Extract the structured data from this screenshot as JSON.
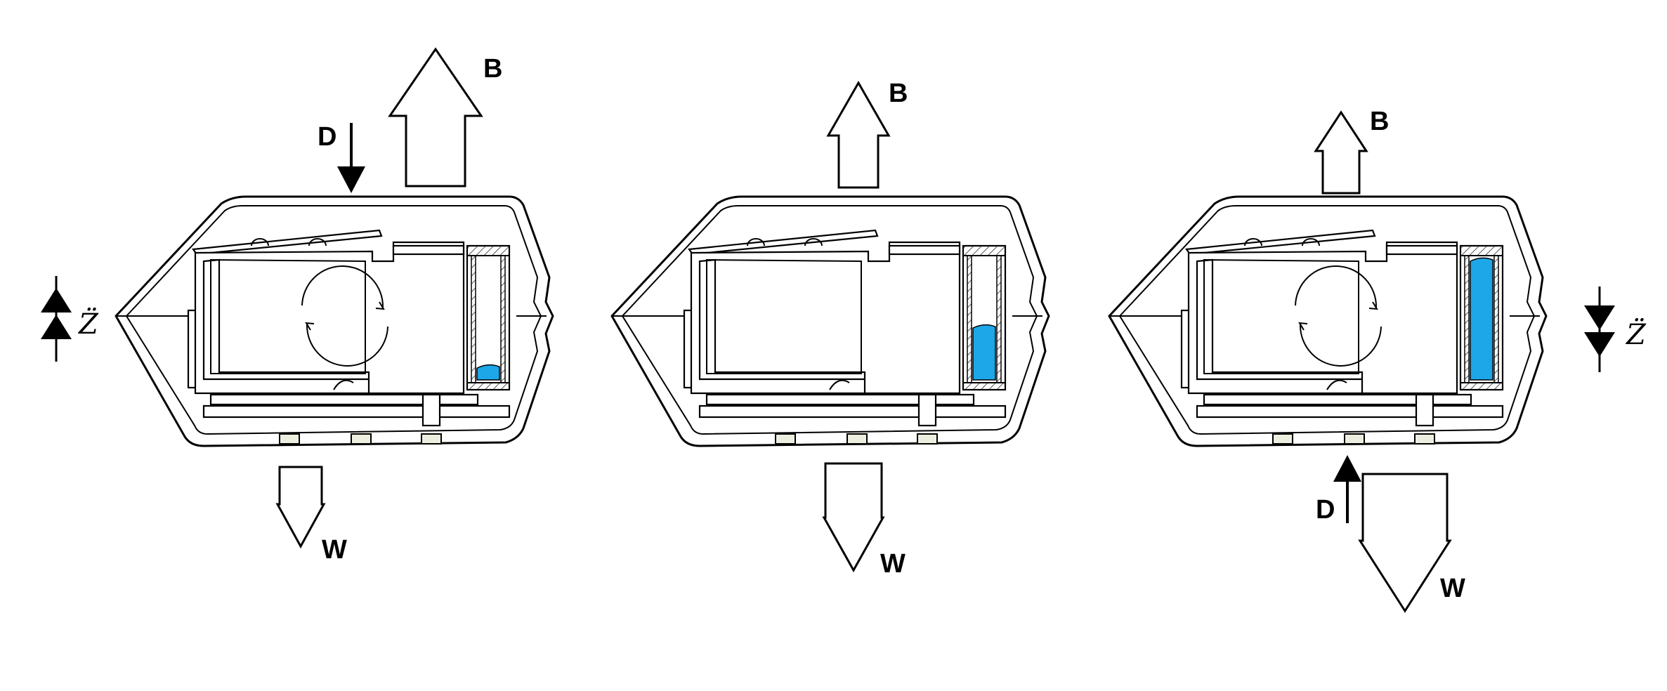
{
  "colors": {
    "water": "#1ea7e8",
    "stroke": "#000000",
    "hatch": "#555555",
    "bg": "#ffffff"
  },
  "panels": [
    {
      "id": "left",
      "buoyancy_label": "B",
      "weight_label": "W",
      "drag_label": "D",
      "accel_label": "Z̈",
      "fill_level": 0.12,
      "rotation_shown": true,
      "accel_direction": "up",
      "drag_direction": "down"
    },
    {
      "id": "center",
      "buoyancy_label": "B",
      "weight_label": "W",
      "fill_level": 0.45,
      "rotation_shown": false
    },
    {
      "id": "right",
      "buoyancy_label": "B",
      "weight_label": "W",
      "drag_label": "D",
      "accel_label": "Z̈",
      "fill_level": 1.0,
      "rotation_shown": true,
      "accel_direction": "down",
      "drag_direction": "up"
    }
  ]
}
